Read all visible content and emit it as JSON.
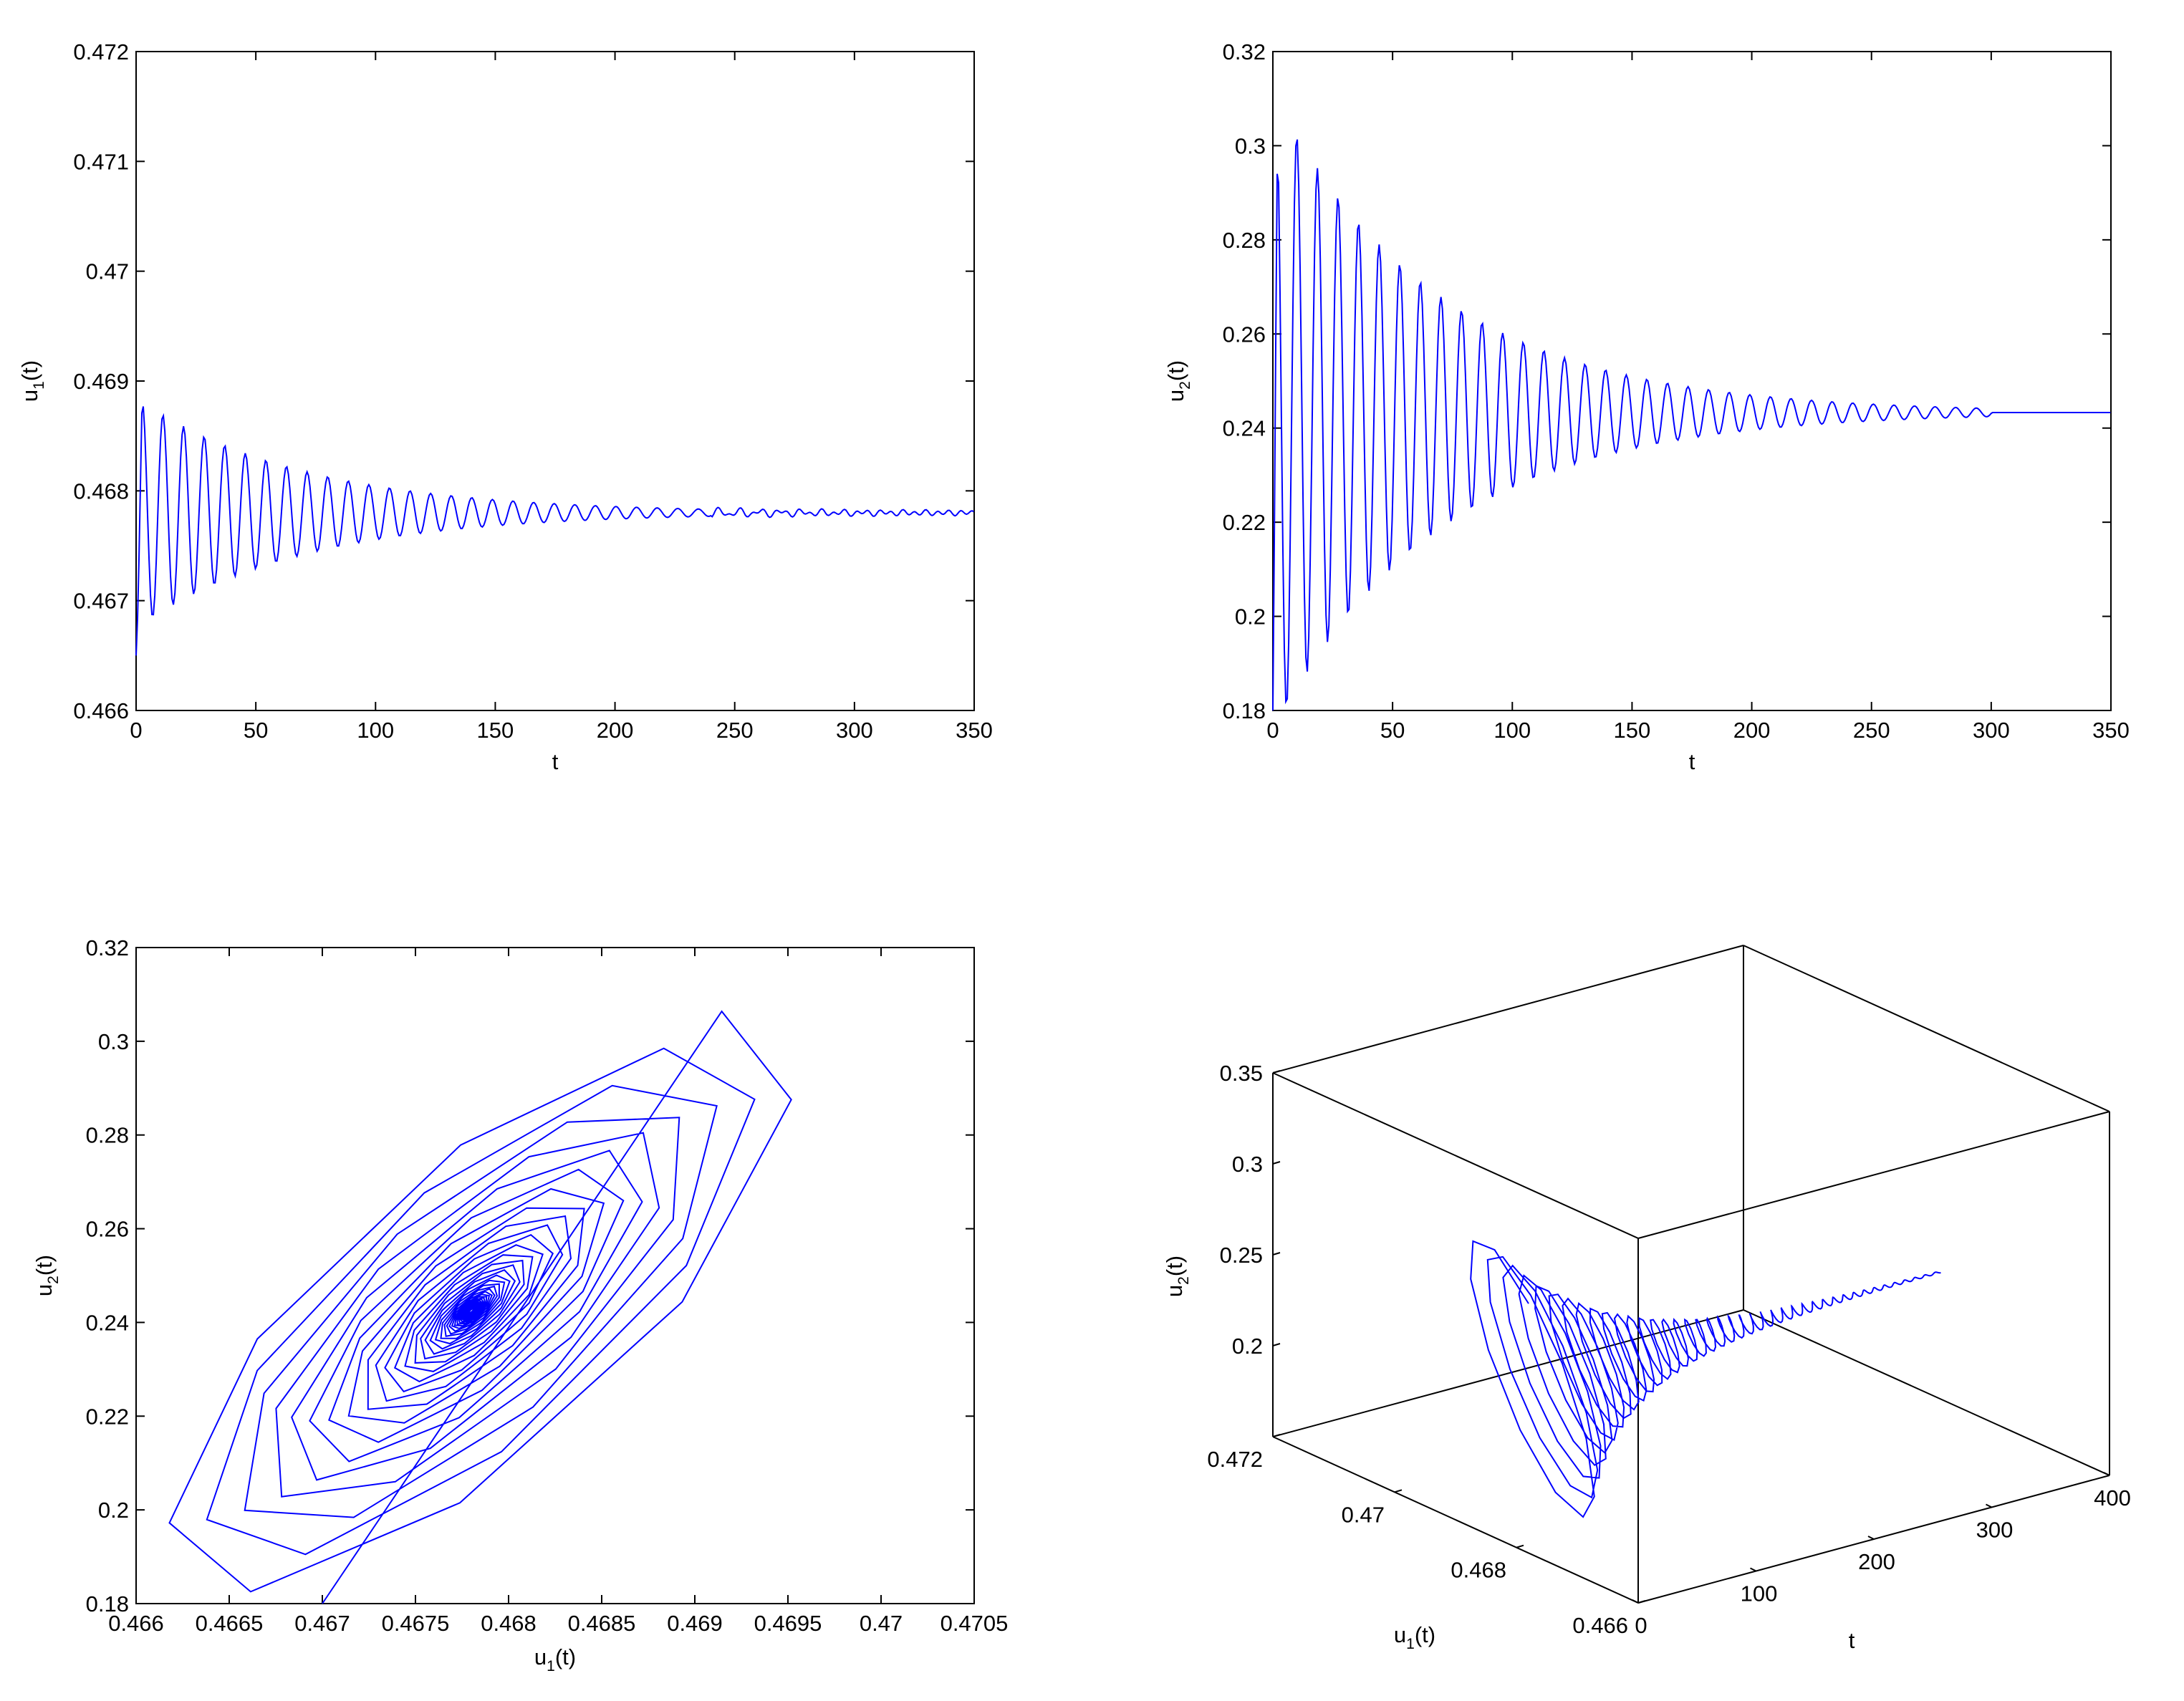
{
  "chart_data": [
    {
      "id": "u1_vs_t",
      "type": "line",
      "title": "",
      "xlabel": "t",
      "ylabel": {
        "base": "u",
        "sub": "1",
        "suffix": "(t)"
      },
      "xlim": [
        0,
        350
      ],
      "ylim": [
        0.466,
        0.472
      ],
      "xticks": [
        {
          "v": 0,
          "label": "0"
        },
        {
          "v": 50,
          "label": "50"
        },
        {
          "v": 100,
          "label": "100"
        },
        {
          "v": 150,
          "label": "150"
        },
        {
          "v": 200,
          "label": "200"
        },
        {
          "v": 250,
          "label": "250"
        },
        {
          "v": 300,
          "label": "300"
        },
        {
          "v": 350,
          "label": "350"
        }
      ],
      "yticks": [
        {
          "v": 0.466,
          "label": "0.466"
        },
        {
          "v": 0.467,
          "label": "0.467"
        },
        {
          "v": 0.468,
          "label": "0.468"
        },
        {
          "v": 0.469,
          "label": "0.469"
        },
        {
          "v": 0.47,
          "label": "0.47"
        },
        {
          "v": 0.471,
          "label": "0.471"
        },
        {
          "v": 0.472,
          "label": "0.472"
        }
      ],
      "series": [
        {
          "name": "u1(t)",
          "color": "#0000ff",
          "model": {
            "equilibrium": 0.4678,
            "initial": 0.4665,
            "amplitude": 0.00105,
            "period": 8.6,
            "decay": 0.0145,
            "t_end": 350
          }
        }
      ]
    },
    {
      "id": "u2_vs_t",
      "type": "line",
      "title": "",
      "xlabel": "t",
      "ylabel": {
        "base": "u",
        "sub": "2",
        "suffix": "(t)"
      },
      "xlim": [
        0,
        350
      ],
      "ylim": [
        0.18,
        0.32
      ],
      "xticks": [
        {
          "v": 0,
          "label": "0"
        },
        {
          "v": 50,
          "label": "50"
        },
        {
          "v": 100,
          "label": "100"
        },
        {
          "v": 150,
          "label": "150"
        },
        {
          "v": 200,
          "label": "200"
        },
        {
          "v": 250,
          "label": "250"
        },
        {
          "v": 300,
          "label": "300"
        },
        {
          "v": 350,
          "label": "350"
        }
      ],
      "yticks": [
        {
          "v": 0.18,
          "label": "0.18"
        },
        {
          "v": 0.2,
          "label": "0.2"
        },
        {
          "v": 0.22,
          "label": "0.22"
        },
        {
          "v": 0.24,
          "label": "0.24"
        },
        {
          "v": 0.26,
          "label": "0.26"
        },
        {
          "v": 0.28,
          "label": "0.28"
        },
        {
          "v": 0.3,
          "label": "0.3"
        },
        {
          "v": 0.32,
          "label": "0.32"
        }
      ],
      "series": [
        {
          "name": "u2(t)",
          "color": "#0000ff",
          "model": {
            "equilibrium": 0.2433,
            "initial": 0.18,
            "amplitude": 0.068,
            "period": 8.6,
            "decay": 0.0145,
            "t_end": 350
          }
        }
      ]
    },
    {
      "id": "phase_u1_u2",
      "type": "line",
      "title": "",
      "xlabel": {
        "base": "u",
        "sub": "1",
        "suffix": "(t)"
      },
      "ylabel": {
        "base": "u",
        "sub": "2",
        "suffix": "(t)"
      },
      "xlim": [
        0.466,
        0.4705
      ],
      "ylim": [
        0.18,
        0.32
      ],
      "xticks": [
        {
          "v": 0.466,
          "label": "0.466"
        },
        {
          "v": 0.4665,
          "label": "0.4665"
        },
        {
          "v": 0.467,
          "label": "0.467"
        },
        {
          "v": 0.4675,
          "label": "0.4675"
        },
        {
          "v": 0.468,
          "label": "0.468"
        },
        {
          "v": 0.4685,
          "label": "0.4685"
        },
        {
          "v": 0.469,
          "label": "0.469"
        },
        {
          "v": 0.4695,
          "label": "0.4695"
        },
        {
          "v": 0.47,
          "label": "0.47"
        },
        {
          "v": 0.4705,
          "label": "0.4705"
        }
      ],
      "yticks": [
        {
          "v": 0.18,
          "label": "0.18"
        },
        {
          "v": 0.2,
          "label": "0.2"
        },
        {
          "v": 0.22,
          "label": "0.22"
        },
        {
          "v": 0.24,
          "label": "0.24"
        },
        {
          "v": 0.26,
          "label": "0.26"
        },
        {
          "v": 0.28,
          "label": "0.28"
        },
        {
          "v": 0.3,
          "label": "0.3"
        },
        {
          "v": 0.32,
          "label": "0.32"
        }
      ],
      "series": [
        {
          "name": "trajectory",
          "color": "#0000ff",
          "model": {
            "center_u1": 0.4678,
            "center_u2": 0.2425,
            "amp_u1": 0.00178,
            "amp_u2": 0.065,
            "phase_lag": 0.7,
            "period": 8.6,
            "decay": 0.0145,
            "t_end": 350,
            "start_u1": 0.467,
            "start_u2": 0.18
          }
        }
      ]
    },
    {
      "id": "trajectory_3d",
      "type": "line",
      "title": "",
      "xlabel": "t",
      "ylabel": {
        "base": "u",
        "sub": "1",
        "suffix": "(t)"
      },
      "zlabel": {
        "base": "u",
        "sub": "2",
        "suffix": "(t)"
      },
      "tlim": [
        0,
        400
      ],
      "u1lim": [
        0.466,
        0.472
      ],
      "u2lim": [
        0.15,
        0.35
      ],
      "tticks": [
        {
          "v": 0,
          "label": "0"
        },
        {
          "v": 100,
          "label": "100"
        },
        {
          "v": 200,
          "label": "200"
        },
        {
          "v": 300,
          "label": "300"
        },
        {
          "v": 400,
          "label": "400"
        }
      ],
      "u1ticks": [
        {
          "v": 0.466,
          "label": "0.466"
        },
        {
          "v": 0.468,
          "label": "0.468"
        },
        {
          "v": 0.47,
          "label": "0.47"
        },
        {
          "v": 0.472,
          "label": "0.472"
        }
      ],
      "u2ticks": [
        {
          "v": 0.2,
          "label": "0.2"
        },
        {
          "v": 0.25,
          "label": "0.25"
        },
        {
          "v": 0.3,
          "label": "0.3"
        },
        {
          "v": 0.35,
          "label": "0.35"
        }
      ],
      "series": [
        {
          "name": "trajectory3d",
          "color": "#0000ff",
          "t_end": 350
        }
      ]
    }
  ]
}
